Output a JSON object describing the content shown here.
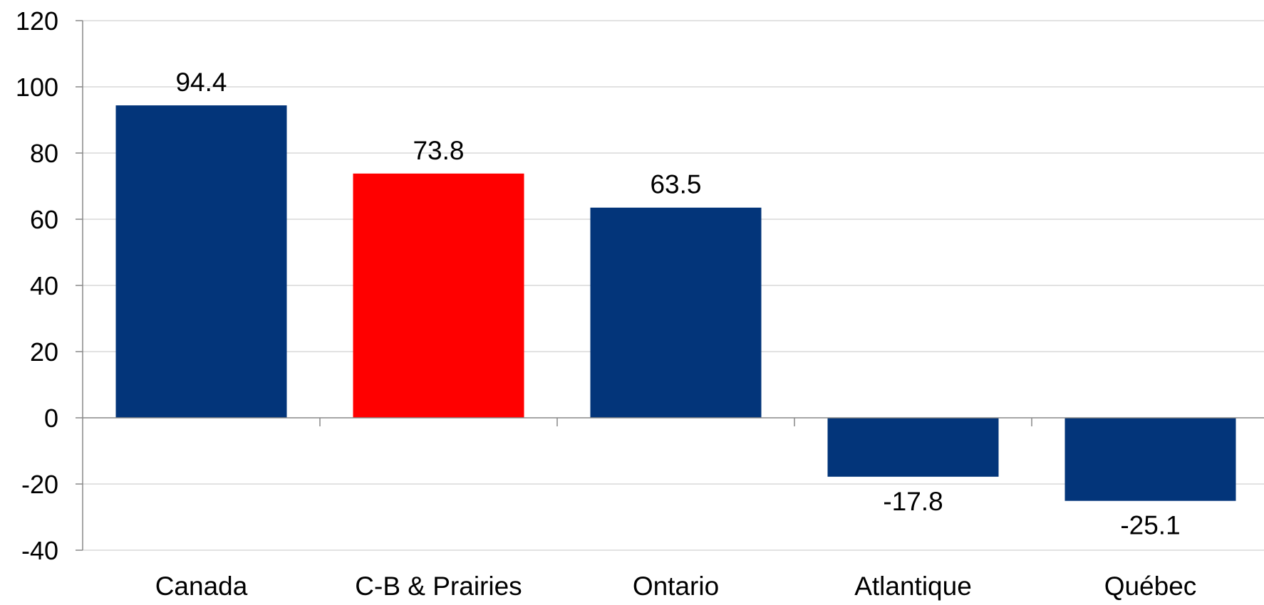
{
  "chart_data": {
    "type": "bar",
    "title": "",
    "xlabel": "",
    "ylabel": "",
    "categories": [
      "Canada",
      "C-B & Prairies",
      "Ontario",
      "Atlantique",
      "Québec"
    ],
    "values": [
      94.4,
      73.8,
      63.5,
      -17.8,
      -25.1
    ],
    "data_labels": [
      "94.4",
      "73.8",
      "63.5",
      "-17.8",
      "-25.1"
    ],
    "bar_colors": [
      "#03357a",
      "#ff0000",
      "#03357a",
      "#03357a",
      "#03357a"
    ],
    "ylim": [
      -40,
      120
    ],
    "yticks": [
      -40,
      -20,
      0,
      20,
      40,
      60,
      80,
      100,
      120
    ],
    "ytick_labels": [
      "-40",
      "-20",
      "0",
      "20",
      "40",
      "60",
      "80",
      "100",
      "120"
    ],
    "grid": true,
    "grid_color": "#d9d9d9",
    "axis_color": "#888888",
    "legend": "none"
  }
}
